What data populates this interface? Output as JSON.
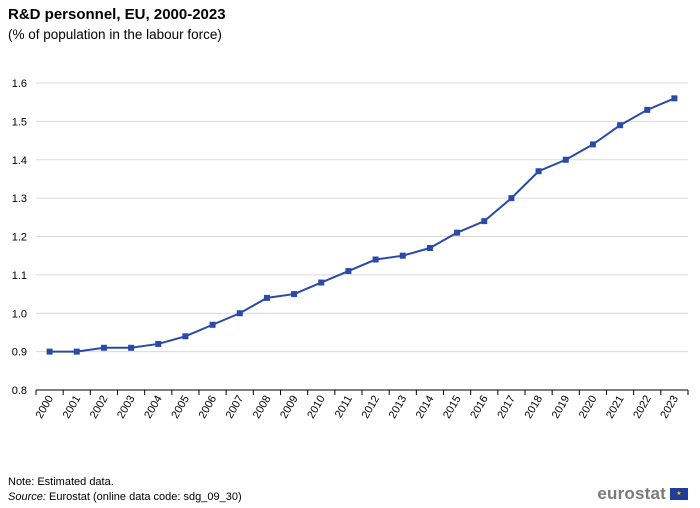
{
  "header": {
    "title": "R&D personnel, EU, 2000-2023",
    "subtitle": "(% of population in the labour force)"
  },
  "footer": {
    "note": "Note: Estimated data.",
    "source_label": "Source:",
    "source_text": "Eurostat (online data code: sdg_09_30)",
    "logo_text": "eurostat",
    "flag_icon": "eu-flag-icon"
  },
  "colors": {
    "line": "#2a4aa8",
    "grid": "#d9d9d9"
  },
  "chart_data": {
    "type": "line",
    "title": "R&D personnel, EU, 2000-2023",
    "subtitle": "(% of population in the labour force)",
    "xlabel": "",
    "ylabel": "",
    "ylim": [
      0.8,
      1.6
    ],
    "yticks": [
      "0.8",
      "0.9",
      "1.0",
      "1.1",
      "1.2",
      "1.3",
      "1.4",
      "1.5",
      "1.6"
    ],
    "grid": true,
    "legend": "none",
    "categories": [
      "2000",
      "2001",
      "2002",
      "2003",
      "2004",
      "2005",
      "2006",
      "2007",
      "2008",
      "2009",
      "2010",
      "2011",
      "2012",
      "2013",
      "2014",
      "2015",
      "2016",
      "2017",
      "2018",
      "2019",
      "2020",
      "2021",
      "2022",
      "2023"
    ],
    "series": [
      {
        "values": [
          0.9,
          0.9,
          0.91,
          0.91,
          0.92,
          0.94,
          0.97,
          1.0,
          1.04,
          1.05,
          1.08,
          1.11,
          1.14,
          1.15,
          1.17,
          1.21,
          1.24,
          1.3,
          1.37,
          1.4,
          1.44,
          1.49,
          1.53,
          1.56
        ]
      }
    ]
  }
}
